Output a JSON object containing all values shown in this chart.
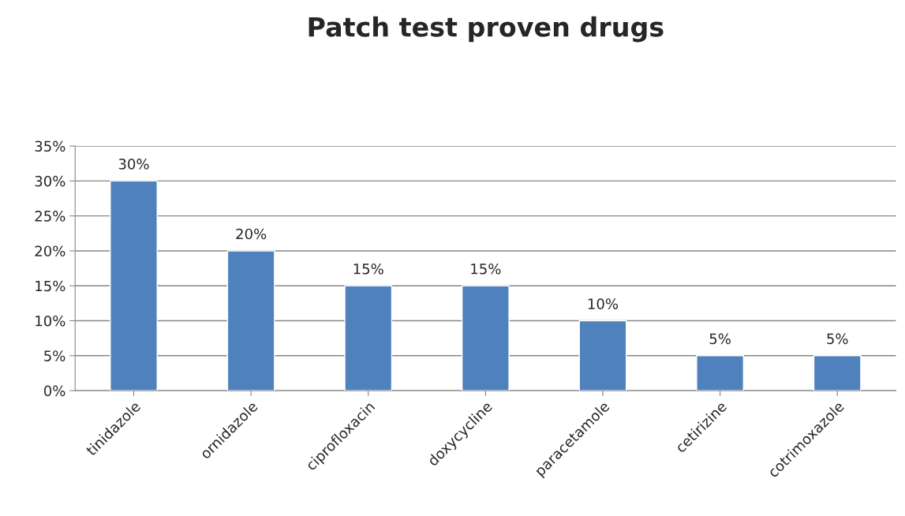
{
  "chart_data": {
    "type": "bar",
    "title": "Patch test proven drugs",
    "categories": [
      "tinidazole",
      "ornidazole",
      "ciprofloxacin",
      "doxycycline",
      "paracetamole",
      "cetirizine",
      "cotrimoxazole"
    ],
    "values": [
      30,
      20,
      15,
      15,
      10,
      5,
      5
    ],
    "value_labels": [
      "30%",
      "20%",
      "15%",
      "15%",
      "10%",
      "5%",
      "5%"
    ],
    "color": "#4f81bd",
    "ylim": [
      0,
      35
    ],
    "yticks": [
      {
        "value": 0,
        "label": "0%"
      },
      {
        "value": 5,
        "label": "5%"
      },
      {
        "value": 10,
        "label": "10%"
      },
      {
        "value": 15,
        "label": "15%"
      },
      {
        "value": 20,
        "label": "20%"
      },
      {
        "value": 25,
        "label": "25%"
      },
      {
        "value": 30,
        "label": "30%"
      },
      {
        "value": 35,
        "label": "35%"
      }
    ],
    "grid": "y"
  }
}
